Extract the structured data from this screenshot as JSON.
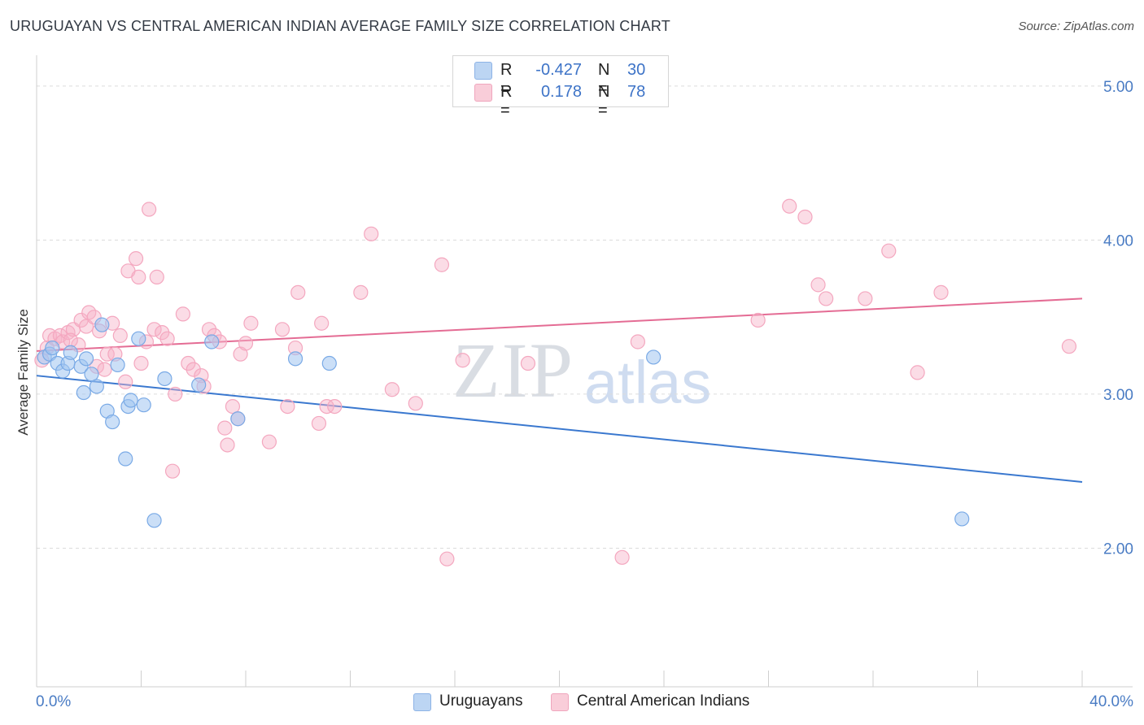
{
  "title": "URUGUAYAN VS CENTRAL AMERICAN INDIAN AVERAGE FAMILY SIZE CORRELATION CHART",
  "source": "Source: ZipAtlas.com",
  "watermark": {
    "zip": "ZIP",
    "atlas": "atlas"
  },
  "legend_top": [
    {
      "r_label": "R =",
      "r_value": "-0.427",
      "n_label": "N =",
      "n_value": "30",
      "color": "#a9c7ee"
    },
    {
      "r_label": "R =",
      "r_value": "0.178",
      "n_label": "N =",
      "n_value": "78",
      "color": "#f6b8cb"
    }
  ],
  "legend_bottom": [
    {
      "label": "Uruguayans",
      "color": "#a9c7ee"
    },
    {
      "label": "Central American Indians",
      "color": "#f6b8cb"
    }
  ],
  "chart_data": {
    "type": "scatter",
    "ylabel": "Average Family Size",
    "xlim": [
      0,
      40
    ],
    "ylim": [
      1.1,
      5.2
    ],
    "x_tick_labels": [
      "0.0%",
      "40.0%"
    ],
    "y_ticks": [
      2.0,
      3.0,
      4.0,
      5.0
    ],
    "y_tick_labels": [
      "2.00",
      "3.00",
      "4.00",
      "5.00"
    ],
    "grid": true,
    "series": [
      {
        "name": "Uruguayans",
        "color": "#7aaae6",
        "line_color": "#3a78cf",
        "trend": [
          [
            0,
            3.12
          ],
          [
            40,
            2.43
          ]
        ],
        "points": [
          [
            0.3,
            3.24
          ],
          [
            0.5,
            3.26
          ],
          [
            0.8,
            3.2
          ],
          [
            1.0,
            3.15
          ],
          [
            1.2,
            3.2
          ],
          [
            1.3,
            3.27
          ],
          [
            1.7,
            3.18
          ],
          [
            1.9,
            3.23
          ],
          [
            1.8,
            3.01
          ],
          [
            2.1,
            3.13
          ],
          [
            2.5,
            3.45
          ],
          [
            2.7,
            2.89
          ],
          [
            2.9,
            2.82
          ],
          [
            3.1,
            3.19
          ],
          [
            3.4,
            2.58
          ],
          [
            3.5,
            2.92
          ],
          [
            3.6,
            2.96
          ],
          [
            4.1,
            2.93
          ],
          [
            4.5,
            2.18
          ],
          [
            4.9,
            3.1
          ],
          [
            6.2,
            3.06
          ],
          [
            6.7,
            3.34
          ],
          [
            7.7,
            2.84
          ],
          [
            9.9,
            3.23
          ],
          [
            11.2,
            3.2
          ],
          [
            23.6,
            3.24
          ],
          [
            35.4,
            2.19
          ],
          [
            3.9,
            3.36
          ],
          [
            2.3,
            3.05
          ],
          [
            0.6,
            3.3
          ]
        ]
      },
      {
        "name": "Central American Indians",
        "color": "#f4a7bf",
        "line_color": "#e46c94",
        "trend": [
          [
            0,
            3.28
          ],
          [
            40,
            3.62
          ]
        ],
        "points": [
          [
            0.2,
            3.22
          ],
          [
            0.4,
            3.3
          ],
          [
            0.5,
            3.38
          ],
          [
            0.7,
            3.36
          ],
          [
            0.9,
            3.38
          ],
          [
            1.0,
            3.34
          ],
          [
            1.2,
            3.4
          ],
          [
            1.4,
            3.42
          ],
          [
            1.6,
            3.32
          ],
          [
            1.7,
            3.48
          ],
          [
            1.9,
            3.44
          ],
          [
            2.0,
            3.53
          ],
          [
            2.2,
            3.5
          ],
          [
            2.3,
            3.18
          ],
          [
            2.6,
            3.16
          ],
          [
            2.7,
            3.26
          ],
          [
            2.9,
            3.46
          ],
          [
            3.0,
            3.26
          ],
          [
            3.2,
            3.38
          ],
          [
            3.4,
            3.08
          ],
          [
            3.5,
            3.8
          ],
          [
            3.8,
            3.88
          ],
          [
            3.9,
            3.76
          ],
          [
            4.0,
            3.2
          ],
          [
            4.2,
            3.34
          ],
          [
            4.3,
            4.2
          ],
          [
            4.5,
            3.42
          ],
          [
            4.6,
            3.76
          ],
          [
            4.8,
            3.4
          ],
          [
            5.0,
            3.36
          ],
          [
            5.2,
            2.5
          ],
          [
            5.3,
            3.0
          ],
          [
            5.6,
            3.52
          ],
          [
            5.8,
            3.2
          ],
          [
            6.0,
            3.16
          ],
          [
            6.3,
            3.12
          ],
          [
            6.4,
            3.05
          ],
          [
            6.6,
            3.42
          ],
          [
            6.8,
            3.38
          ],
          [
            7.0,
            3.34
          ],
          [
            7.2,
            2.78
          ],
          [
            7.3,
            2.67
          ],
          [
            7.5,
            2.92
          ],
          [
            7.7,
            2.84
          ],
          [
            7.8,
            3.26
          ],
          [
            8.0,
            3.33
          ],
          [
            8.2,
            3.46
          ],
          [
            8.9,
            2.69
          ],
          [
            9.4,
            3.42
          ],
          [
            9.6,
            2.92
          ],
          [
            9.9,
            3.3
          ],
          [
            10.0,
            3.66
          ],
          [
            10.8,
            2.81
          ],
          [
            10.9,
            3.46
          ],
          [
            11.1,
            2.92
          ],
          [
            11.4,
            2.92
          ],
          [
            12.4,
            3.66
          ],
          [
            12.8,
            4.04
          ],
          [
            13.6,
            3.03
          ],
          [
            14.5,
            2.94
          ],
          [
            15.5,
            3.84
          ],
          [
            15.7,
            1.93
          ],
          [
            16.3,
            3.22
          ],
          [
            18.8,
            3.2
          ],
          [
            22.4,
            1.94
          ],
          [
            23.0,
            3.34
          ],
          [
            27.6,
            3.48
          ],
          [
            28.8,
            4.22
          ],
          [
            29.4,
            4.15
          ],
          [
            29.9,
            3.71
          ],
          [
            30.2,
            3.62
          ],
          [
            31.7,
            3.62
          ],
          [
            32.6,
            3.93
          ],
          [
            33.7,
            3.14
          ],
          [
            34.6,
            3.66
          ],
          [
            39.5,
            3.31
          ],
          [
            1.3,
            3.35
          ],
          [
            2.4,
            3.41
          ]
        ]
      }
    ]
  }
}
